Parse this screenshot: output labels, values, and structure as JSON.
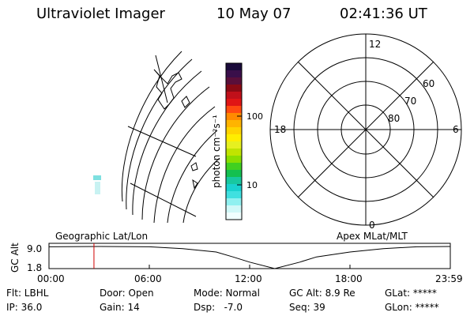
{
  "header": {
    "instrument": "Ultraviolet Imager",
    "date": "10 May 07",
    "time": "02:41:36 UT"
  },
  "color_bar": {
    "label": "photon cm⁻²s⁻¹",
    "ticks": [
      "100",
      "10"
    ],
    "colors": [
      "#1a0a3a",
      "#3a0f4a",
      "#5a0f3a",
      "#8a0a14",
      "#c0101a",
      "#e01515",
      "#ff4a10",
      "#ff8a00",
      "#ffb400",
      "#ffd400",
      "#ffee00",
      "#e6f020",
      "#c0e400",
      "#8ade00",
      "#40d020",
      "#14c050",
      "#18c8a0",
      "#1ad2d0",
      "#40e0e0",
      "#90f0f0",
      "#d0f8f8",
      "#f0ffff"
    ]
  },
  "left_panel": {
    "caption": "Geographic Lat/Lon"
  },
  "right_panel": {
    "caption": "Apex MLat/MLT",
    "mlt_labels": [
      "12",
      "18",
      "6",
      "0"
    ],
    "lat_labels": [
      "60",
      "70",
      "80"
    ]
  },
  "chart_data": {
    "type": "line",
    "ylabel": "GC Alt",
    "yticks": [
      "9.0",
      "1.8"
    ],
    "ylim": [
      1.8,
      9.0
    ],
    "xticks": [
      "00:00",
      "06:00",
      "12:00",
      "18:00",
      "23:59"
    ],
    "x_hours": [
      0,
      3,
      6,
      8,
      10,
      11,
      12,
      13.5,
      15,
      16,
      18,
      20,
      22,
      24
    ],
    "y_alt": [
      8.9,
      9.0,
      8.9,
      8.3,
      7.2,
      5.6,
      3.9,
      1.8,
      3.9,
      5.6,
      7.2,
      8.3,
      8.9,
      9.0
    ],
    "marker_hour": 2.69,
    "marker_color": "#d00000"
  },
  "status": {
    "row1": {
      "flt": "Flt: LBHL",
      "door": "Door: Open",
      "mode": "Mode: Normal",
      "gcalt": "GC Alt: 8.9 Re",
      "glat": "GLat: *****"
    },
    "row2": {
      "ip": "IP: 36.0",
      "gain": "Gain: 14",
      "dsp": "Dsp:   -7.0",
      "seq": "Seq: 39",
      "glon": "GLon: *****"
    }
  }
}
